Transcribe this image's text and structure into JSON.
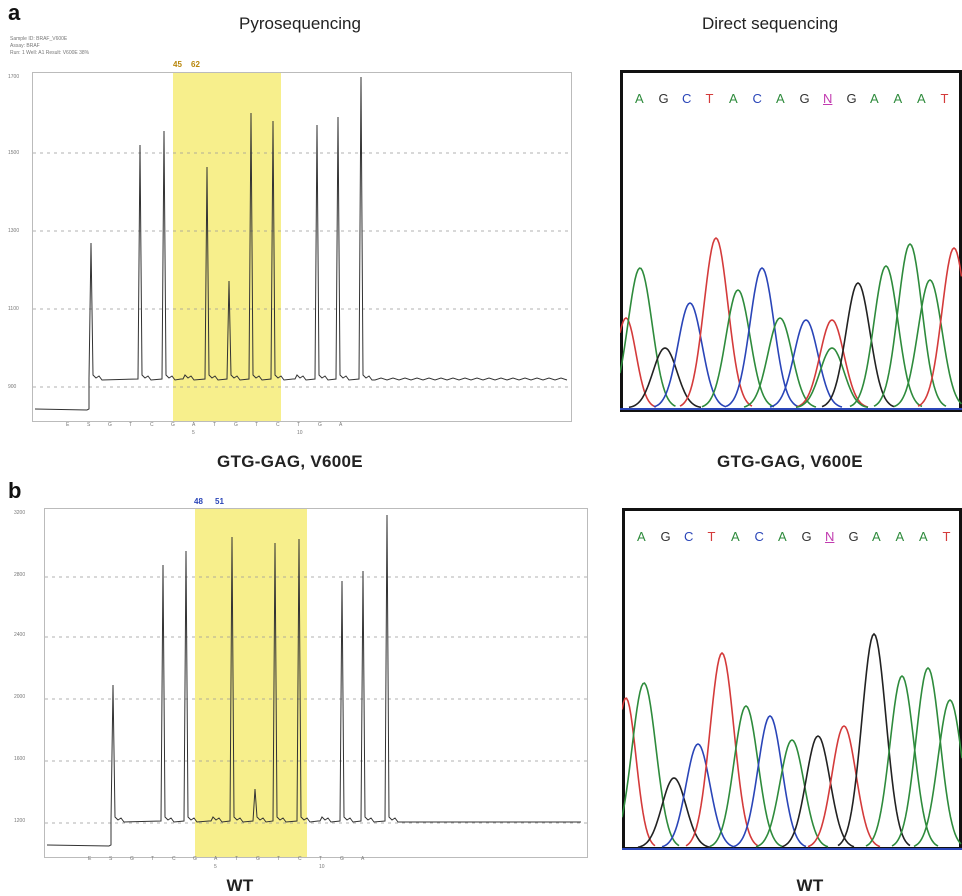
{
  "panel_a": {
    "letter": "a",
    "left_title": "Pyrosequencing",
    "right_title": "Direct sequencing",
    "left_caption": "GTG-GAG, V600E",
    "right_caption": "GTG-GAG, V600E",
    "pyro_markers": [
      "45",
      "62"
    ],
    "pyro_header_lines": [
      "Sample ID: BRAF_V600E",
      "Assay: BRAF",
      "Run: 1  Well: A1  Result: V600E 38%"
    ],
    "pyro_y_ticks": [
      "1700",
      "1500",
      "1300",
      "1100",
      "900"
    ],
    "pyro_x_ticks": [
      "E",
      "S",
      "G",
      "T",
      "C",
      "G",
      "A",
      "T",
      "G",
      "T",
      "C",
      "T",
      "G",
      "A"
    ],
    "pyro_x_sub": [
      "5",
      "10"
    ],
    "seq_letters": [
      {
        "ch": "A",
        "color": "#2e8b3c"
      },
      {
        "ch": "G",
        "color": "#333333"
      },
      {
        "ch": "C",
        "color": "#2a45b8"
      },
      {
        "ch": "T",
        "color": "#d43b3b"
      },
      {
        "ch": "A",
        "color": "#2e8b3c"
      },
      {
        "ch": "C",
        "color": "#2a45b8"
      },
      {
        "ch": "A",
        "color": "#2e8b3c"
      },
      {
        "ch": "G",
        "color": "#333333"
      },
      {
        "ch": "N",
        "color": "#c23bb0"
      },
      {
        "ch": "G",
        "color": "#333333"
      },
      {
        "ch": "A",
        "color": "#2e8b3c"
      },
      {
        "ch": "A",
        "color": "#2e8b3c"
      },
      {
        "ch": "A",
        "color": "#2e8b3c"
      },
      {
        "ch": "T",
        "color": "#d43b3b"
      }
    ]
  },
  "panel_b": {
    "letter": "b",
    "left_caption": "WT",
    "right_caption": "WT",
    "pyro_markers": [
      "48",
      "51"
    ],
    "pyro_y_ticks": [
      "3200",
      "2800",
      "2400",
      "2000",
      "1600",
      "1200"
    ],
    "pyro_x_ticks": [
      "E",
      "S",
      "G",
      "T",
      "C",
      "G",
      "A",
      "T",
      "G",
      "T",
      "C",
      "T",
      "G",
      "A"
    ],
    "pyro_x_sub": [
      "5",
      "10"
    ],
    "seq_letters": [
      {
        "ch": "A",
        "color": "#2e8b3c"
      },
      {
        "ch": "G",
        "color": "#333333"
      },
      {
        "ch": "C",
        "color": "#2a45b8"
      },
      {
        "ch": "T",
        "color": "#d43b3b"
      },
      {
        "ch": "A",
        "color": "#2e8b3c"
      },
      {
        "ch": "C",
        "color": "#2a45b8"
      },
      {
        "ch": "A",
        "color": "#2e8b3c"
      },
      {
        "ch": "G",
        "color": "#333333"
      },
      {
        "ch": "N",
        "color": "#c23bb0"
      },
      {
        "ch": "G",
        "color": "#333333"
      },
      {
        "ch": "A",
        "color": "#2e8b3c"
      },
      {
        "ch": "A",
        "color": "#2e8b3c"
      },
      {
        "ch": "A",
        "color": "#2e8b3c"
      },
      {
        "ch": "T",
        "color": "#d43b3b"
      }
    ]
  },
  "colors": {
    "highlight": "#f7ef8c",
    "trace": "#333333",
    "grid": "#999999",
    "marker_a": "#b8860b",
    "marker_b": "#2a45b8"
  }
}
